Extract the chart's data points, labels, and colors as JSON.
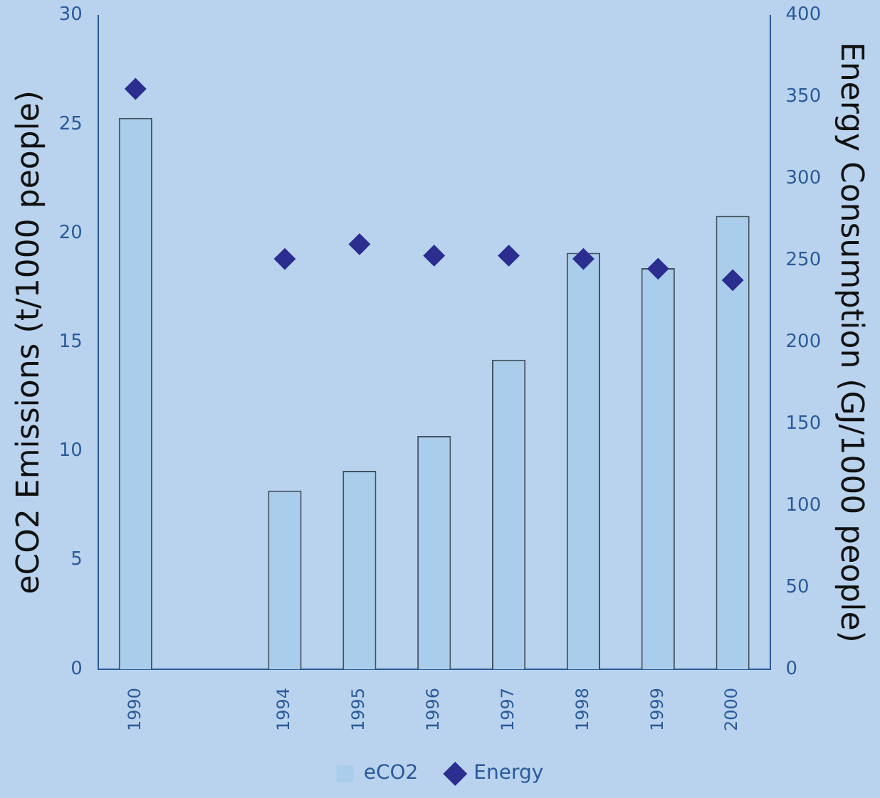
{
  "chart_data": {
    "type": "bar",
    "categories": [
      "1990",
      null,
      "1994",
      "1995",
      "1996",
      "1997",
      "1998",
      "1999",
      "2000"
    ],
    "series": [
      {
        "name": "eCO2",
        "color": "#a9cdea",
        "values": [
          25.3,
          null,
          8.2,
          9.1,
          10.7,
          14.2,
          19.1,
          18.4,
          20.8
        ]
      },
      {
        "name": "Energy",
        "type": "scatter",
        "color": "#2b2d8f",
        "axis": "y2",
        "values": [
          355,
          null,
          251,
          260,
          253,
          253,
          251,
          245,
          238
        ]
      }
    ],
    "ylabel": "eCO2 Emissions (t/1000 people)",
    "y2label": "Energy Consumption (GJ/1000 people)",
    "ylim": [
      0,
      30
    ],
    "yticks": [
      0,
      5,
      10,
      15,
      20,
      25,
      30
    ],
    "y2lim": [
      0,
      400
    ],
    "y2ticks": [
      0,
      50,
      100,
      150,
      200,
      250,
      300,
      350,
      400
    ],
    "legend": "bottom",
    "marker": "diamond"
  }
}
